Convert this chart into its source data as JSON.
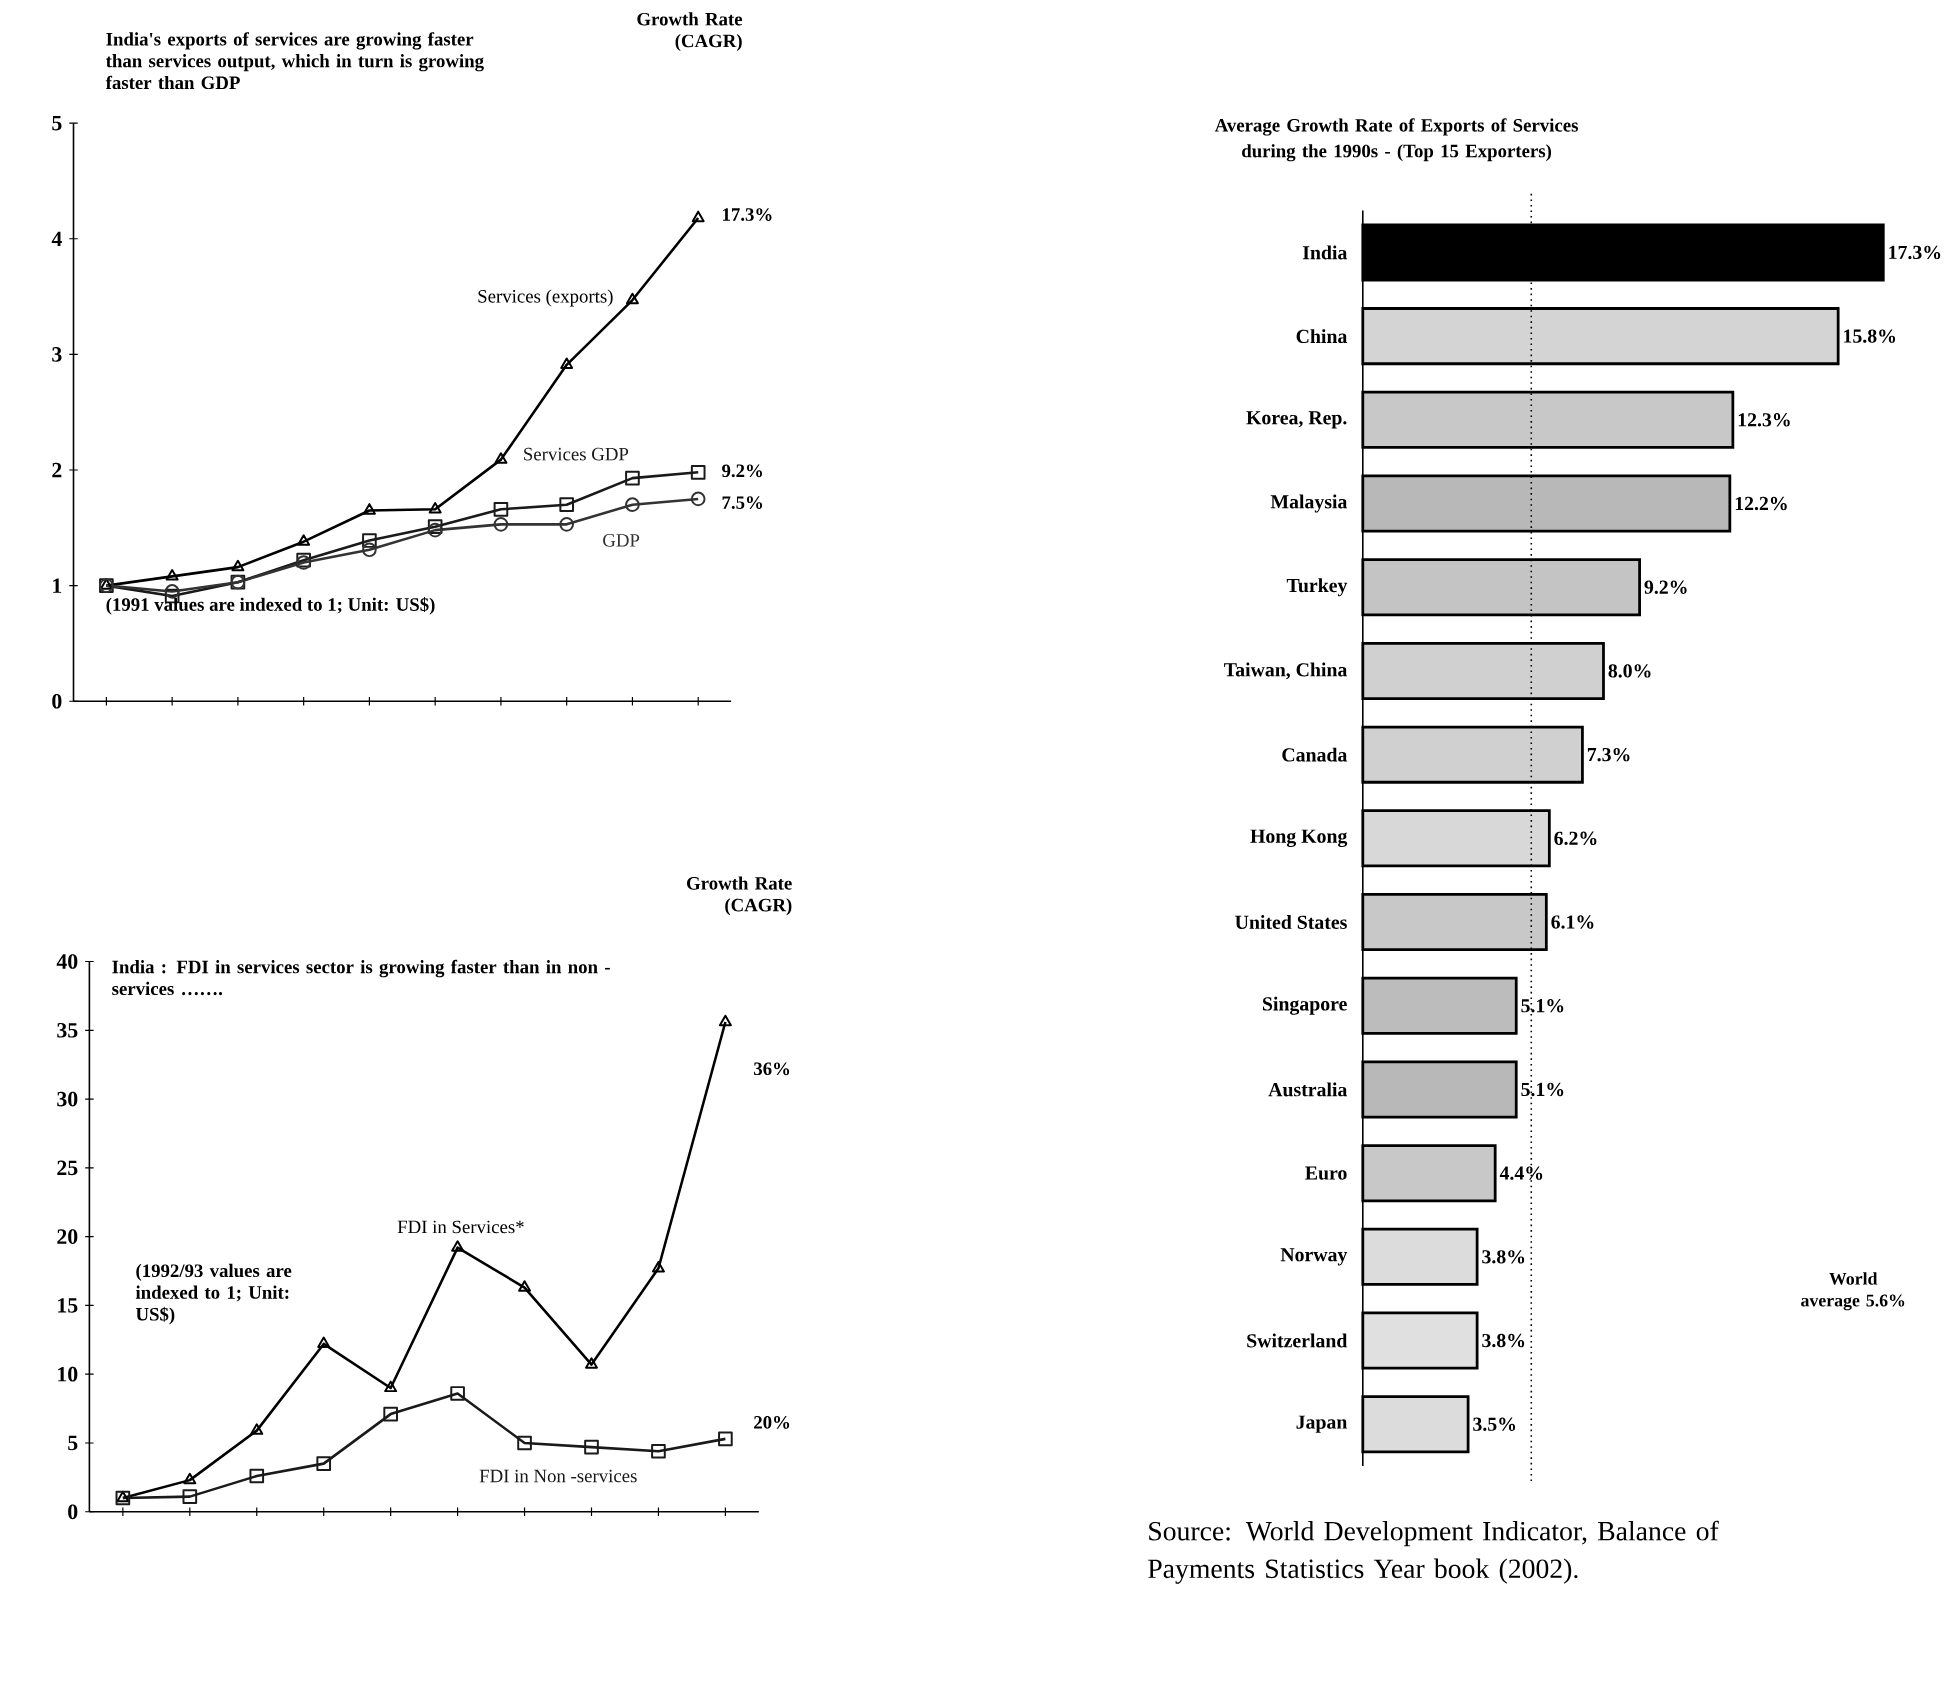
{
  "chart_data": [
    {
      "type": "line",
      "categories": [
        null,
        null,
        null,
        null,
        null,
        null,
        null,
        null,
        null,
        null
      ],
      "ylim": [
        0,
        5
      ],
      "yticks": [
        0,
        1,
        2,
        3,
        4,
        5
      ],
      "series": [
        {
          "name": "Services (exports)",
          "color": "#000000",
          "marker": "triangle",
          "values": [
            1.0,
            1.08,
            1.16,
            1.38,
            1.65,
            1.66,
            2.09,
            2.91,
            3.47,
            4.18
          ]
        },
        {
          "name": "Services GDP",
          "color": "#1a1a1a",
          "marker": "square",
          "values": [
            1.0,
            0.91,
            1.03,
            1.22,
            1.39,
            1.51,
            1.66,
            1.7,
            1.93,
            1.98
          ]
        },
        {
          "name": "GDP",
          "color": "#333333",
          "marker": "circle",
          "values": [
            1.0,
            0.95,
            1.03,
            1.2,
            1.31,
            1.48,
            1.53,
            1.53,
            1.7,
            1.75
          ]
        }
      ],
      "annotations": [
        "India's exports of services are growing faster than services output, which in turn is growing faster than GDP",
        "Growth Rate (CAGR)",
        "17.3%",
        "9.2%",
        "7.5%",
        "(1991 values are indexed to 1; Unit: US$)"
      ]
    },
    {
      "type": "line",
      "categories": [
        null,
        null,
        null,
        null,
        null,
        null,
        null,
        null,
        null,
        null
      ],
      "ylim": [
        0,
        40
      ],
      "yticks": [
        0,
        5,
        10,
        15,
        20,
        25,
        30,
        35,
        40
      ],
      "series": [
        {
          "name": "FDI in Services*",
          "color": "#000000",
          "marker": "triangle",
          "values": [
            1,
            2.3,
            5.9,
            12.2,
            9.0,
            19.2,
            16.3,
            10.7,
            17.7,
            35.6
          ]
        },
        {
          "name": "FDI in Non -services",
          "color": "#1a1a1a",
          "marker": "square",
          "values": [
            1,
            1.1,
            2.6,
            3.5,
            7.1,
            8.6,
            5.0,
            4.7,
            4.4,
            5.3
          ]
        }
      ],
      "annotations": [
        "India : FDI in services sector is growing faster than in non -services …….",
        "Growth Rate (CAGR)",
        "36%",
        "20%",
        "(1992/93 values are indexed to 1; Unit: US$)"
      ]
    },
    {
      "type": "bar",
      "orientation": "horizontal",
      "title": "Average Growth Rate of Exports of Services during the 1990s - (Top 15 Exporters)",
      "categories": [
        "India",
        "China",
        "Korea, Rep.",
        "Malaysia",
        "Turkey",
        "Taiwan, China",
        "Canada",
        "Hong Kong",
        "United States",
        "Singapore",
        "Australia",
        "Euro",
        "Norway",
        "Switzerland",
        "Japan"
      ],
      "values": [
        17.3,
        15.8,
        12.3,
        12.2,
        9.2,
        8.0,
        7.3,
        6.2,
        6.1,
        5.1,
        5.1,
        4.4,
        3.8,
        3.8,
        3.5
      ],
      "value_labels": [
        "17.3%",
        "15.8%",
        "12.3%",
        "12.2%",
        "9.2%",
        "8.0%",
        "7.3%",
        "6.2%",
        "6.1%",
        "5.1%",
        "5.1%",
        "4.4%",
        "3.8%",
        "3.8%",
        "3.5%"
      ],
      "colors": [
        "#000000",
        "#d4d4d4",
        "#c8c8c8",
        "#b8b8b8",
        "#c4c4c4",
        "#d0d0d0",
        "#d0d0d0",
        "#d8d8d8",
        "#c8c8c8",
        "#bcbcbc",
        "#b8b8b8",
        "#c8c8c8",
        "#dcdcdc",
        "#e0e0e0",
        "#dcdcdc"
      ],
      "tick_labels": "y",
      "ref_lines": [
        {
          "axis": "x",
          "value": 5.6,
          "label": "World average 5.6%",
          "line_style": "dotted"
        }
      ],
      "annotations": [
        "Source: World Development Indicator,  Balance of Payments Statistics Year book (2002)."
      ]
    }
  ]
}
